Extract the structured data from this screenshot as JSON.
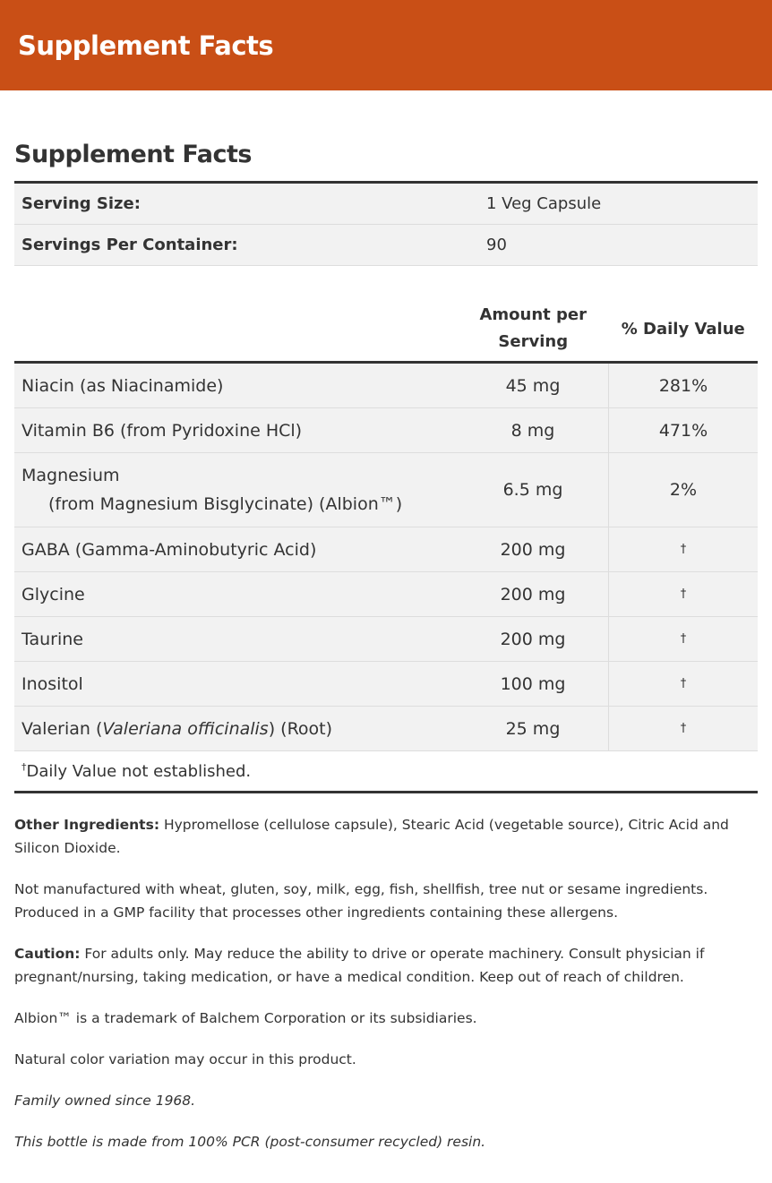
{
  "banner": {
    "title": "Supplement Facts"
  },
  "section_title": "Supplement Facts",
  "serving": [
    {
      "label": "Serving Size:",
      "value": "1 Veg Capsule"
    },
    {
      "label": "Servings Per Container:",
      "value": "90"
    }
  ],
  "columns": {
    "amount": "Amount per Serving",
    "dv": "% Daily Value"
  },
  "nutrients": [
    {
      "name": "Niacin (as Niacinamide)",
      "amount": "45 mg",
      "dv": "281%"
    },
    {
      "name": "Vitamin B6 (from Pyridoxine HCl)",
      "amount": "8 mg",
      "dv": "471%"
    },
    {
      "name": "Magnesium",
      "sub": "(from Magnesium Bisglycinate) (Albion™)",
      "amount": "6.5 mg",
      "dv": "2%"
    },
    {
      "name": "GABA (Gamma-Aminobutyric Acid)",
      "amount": "200 mg",
      "dv": "†"
    },
    {
      "name": "Glycine",
      "amount": "200 mg",
      "dv": "†"
    },
    {
      "name": "Taurine",
      "amount": "200 mg",
      "dv": "†"
    },
    {
      "name": "Inositol",
      "amount": "100 mg",
      "dv": "†"
    },
    {
      "name_pre": "Valerian (",
      "name_italic": "Valeriana officinalis",
      "name_post": ") (Root)",
      "amount": "25 mg",
      "dv": "†"
    }
  ],
  "footnote": {
    "mark": "†",
    "text": "Daily Value not established."
  },
  "notes": {
    "other_label": "Other Ingredients:",
    "other_text": " Hypromellose (cellulose capsule), Stearic Acid (vegetable source), Citric Acid and Silicon Dioxide.",
    "allergen": "Not manufactured with wheat, gluten, soy, milk, egg, fish, shellfish, tree nut or sesame ingredients. Produced in a GMP facility that processes other ingredients containing these allergens.",
    "caution_label": "Caution:",
    "caution_text": " For adults only. May reduce the ability to drive or operate machinery. Consult physician if pregnant/nursing, taking medication, or have a medical condition. Keep out of reach of children.",
    "trademark": "Albion™ is a trademark of Balchem Corporation or its subsidiaries.",
    "color": "Natural color variation may occur in this product.",
    "family": "Family owned since 1968.",
    "bottle": "This bottle is made from 100% PCR (post-consumer recycled) resin."
  }
}
